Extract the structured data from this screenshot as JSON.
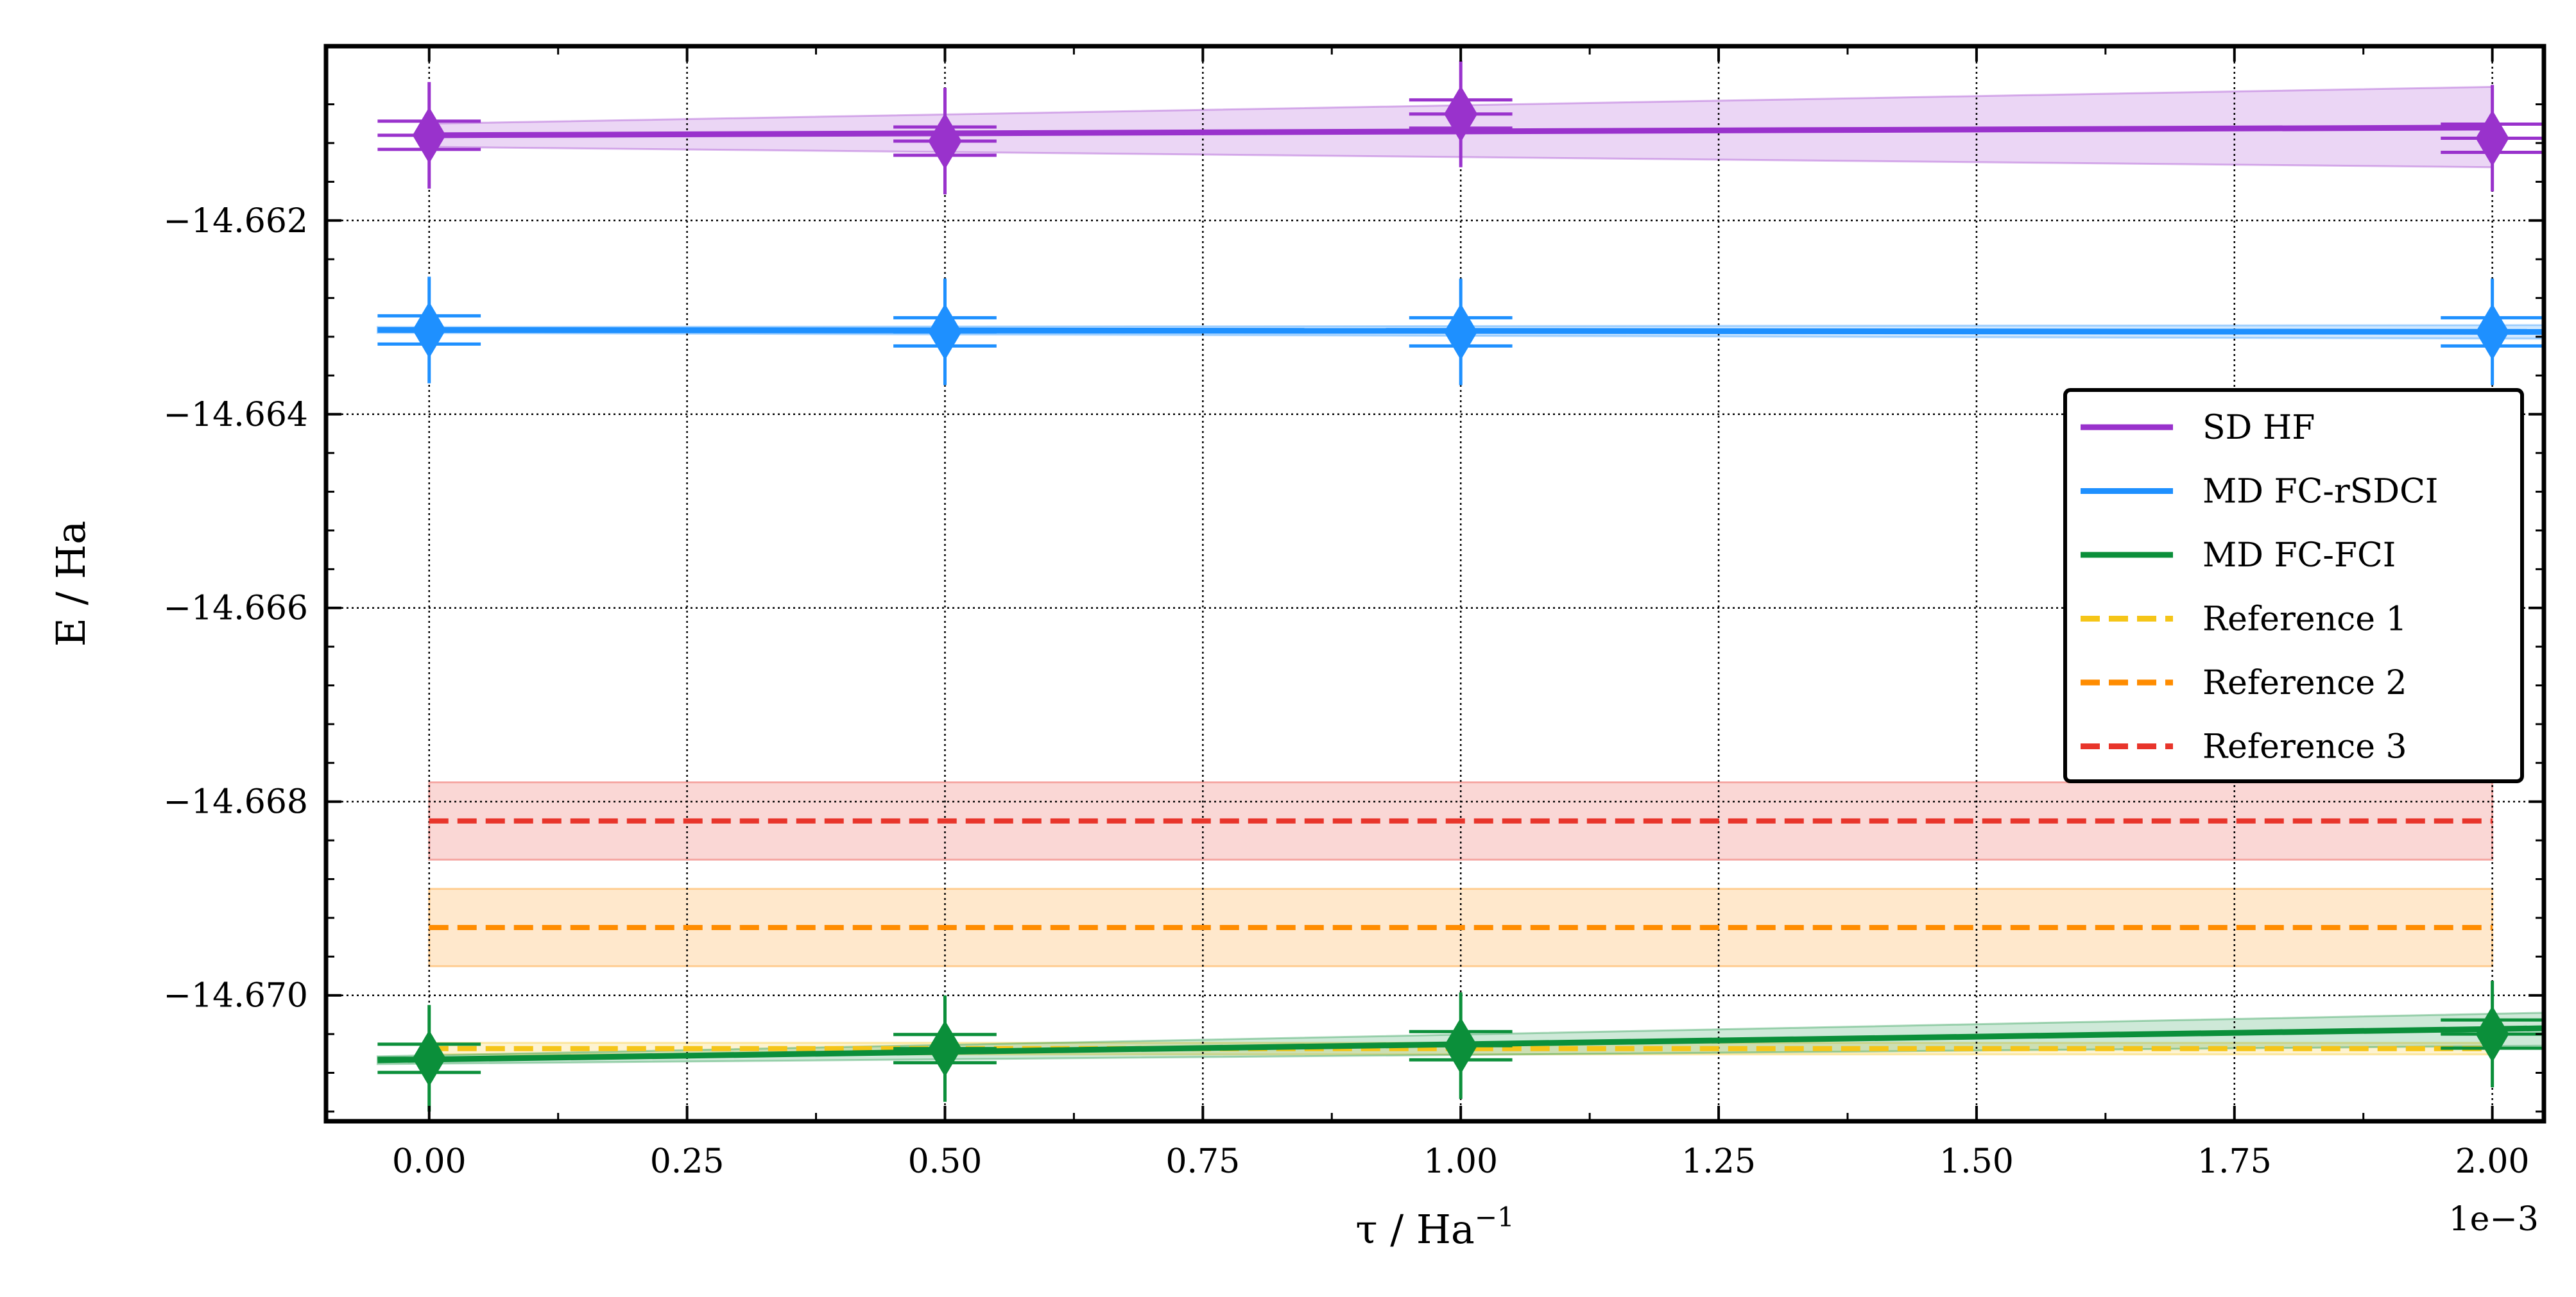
{
  "chart_data": {
    "type": "scatter",
    "title": "",
    "xlabel": "τ / Ha⁻¹",
    "xlabel_main": "τ / Ha",
    "xlabel_sup": "−1",
    "ylabel": "E / Ha",
    "x_offset_label": "1e−3",
    "xlim": [
      -0.1,
      2.05
    ],
    "ylim": [
      -14.6713,
      -14.6602
    ],
    "xticks": [
      0.0,
      0.25,
      0.5,
      0.75,
      1.0,
      1.25,
      1.5,
      1.75,
      2.0
    ],
    "xtick_labels": [
      "0.00",
      "0.25",
      "0.50",
      "0.75",
      "1.00",
      "1.25",
      "1.50",
      "1.75",
      "2.00"
    ],
    "yticks": [
      -14.662,
      -14.664,
      -14.666,
      -14.668,
      -14.67
    ],
    "ytick_labels": [
      "−14.662",
      "−14.664",
      "−14.666",
      "−14.668",
      "−14.670"
    ],
    "grid": true,
    "legend_position": "right",
    "series": [
      {
        "name": "SD HF",
        "color": "#9932CC",
        "x": [
          0.0,
          0.5,
          1.0,
          2.0
        ],
        "y": [
          -14.66112,
          -14.66118,
          -14.6609,
          -14.66115
        ],
        "yerr": [
          0.00055,
          0.00055,
          0.00055,
          0.00055
        ],
        "xerr": [
          0.05,
          0.05,
          0.05,
          0.05
        ],
        "fit": {
          "x": [
            0.0,
            2.0
          ],
          "y": [
            -14.66112,
            -14.66104
          ]
        },
        "fit_band": {
          "x": [
            0.0,
            2.0
          ],
          "upper": [
            -14.661,
            -14.66062
          ],
          "lower": [
            -14.66124,
            -14.66145
          ]
        }
      },
      {
        "name": "MD FC-rSDCI",
        "color": "#1E90FF",
        "x": [
          0.0,
          0.5,
          1.0,
          2.0
        ],
        "y": [
          -14.66313,
          -14.66315,
          -14.66315,
          -14.66315
        ],
        "yerr": [
          0.00055,
          0.00055,
          0.00055,
          0.00055
        ],
        "xerr": [
          0.05,
          0.05,
          0.05,
          0.05
        ],
        "fit": {
          "x": [
            -0.05,
            2.05
          ],
          "y": [
            -14.66313,
            -14.66315
          ]
        },
        "fit_band": {
          "x": [
            -0.05,
            2.05
          ],
          "upper": [
            -14.6631,
            -14.66308
          ],
          "lower": [
            -14.66316,
            -14.66322
          ]
        }
      },
      {
        "name": "MD FC-FCI",
        "color": "#0B8F3A",
        "x": [
          0.0,
          0.5,
          1.0,
          2.0
        ],
        "y": [
          -14.67065,
          -14.67055,
          -14.67052,
          -14.6704
        ],
        "yerr": [
          0.00055,
          0.00055,
          0.00055,
          0.00055
        ],
        "xerr": [
          0.05,
          0.05,
          0.05,
          0.05
        ],
        "fit": {
          "x": [
            -0.05,
            2.05
          ],
          "y": [
            -14.67067,
            -14.67034
          ]
        },
        "fit_band": {
          "x": [
            -0.05,
            2.05
          ],
          "upper": [
            -14.67063,
            -14.67018
          ],
          "lower": [
            -14.67071,
            -14.67052
          ]
        }
      }
    ],
    "references": [
      {
        "name": "Reference 1",
        "color": "#F5C518",
        "value": -14.67055,
        "band": [
          -14.67061,
          -14.67049
        ],
        "x": [
          0.0,
          2.0
        ]
      },
      {
        "name": "Reference 2",
        "color": "#FF8C00",
        "value": -14.6693,
        "band": [
          -14.6697,
          -14.6689
        ],
        "x": [
          0.0,
          2.0
        ]
      },
      {
        "name": "Reference 3",
        "color": "#E8352B",
        "value": -14.6682,
        "band": [
          -14.6686,
          -14.6678
        ],
        "x": [
          0.0,
          2.0
        ]
      }
    ]
  }
}
